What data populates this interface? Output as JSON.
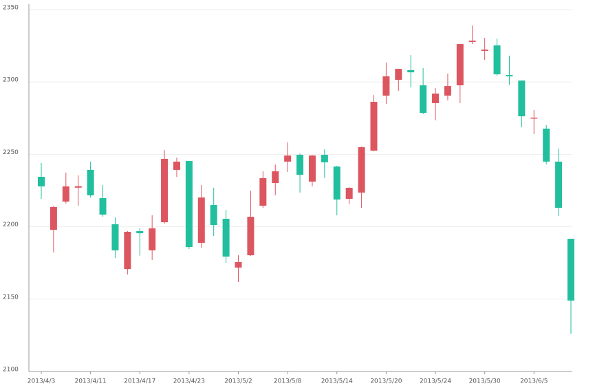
{
  "chart_data": {
    "type": "candlestick",
    "categories": [
      "2013/4/3",
      null,
      null,
      null,
      "2013/4/11",
      null,
      null,
      null,
      "2013/4/17",
      null,
      null,
      null,
      "2013/4/23",
      null,
      null,
      null,
      "2013/5/2",
      null,
      null,
      null,
      "2013/5/8",
      null,
      null,
      null,
      "2013/5/14",
      null,
      null,
      null,
      "2013/5/20",
      null,
      null,
      null,
      "2013/5/24",
      null,
      null,
      null,
      "2013/5/30",
      null,
      null,
      null,
      "2013/6/5",
      null,
      null,
      null
    ],
    "open": [
      2234.5,
      2197.9,
      2217.4,
      2227.0,
      2239.3,
      2219.8,
      2201.7,
      2170.8,
      2197.0,
      2183.7,
      2203.1,
      2239.3,
      2245.4,
      2188.9,
      2215.0,
      2205.5,
      2171.8,
      2180.3,
      2214.5,
      2230.2,
      2245.0,
      2249.7,
      2231.2,
      2249.7,
      2241.6,
      2219.3,
      2223.6,
      2252.6,
      2290.6,
      2301.5,
      2308.2,
      2297.7,
      2285.4,
      2290.6,
      2297.7,
      2327.7,
      2321.5,
      2325.3,
      2304.8,
      2301.0,
      2274.9,
      2267.8,
      2245.0,
      2191.7
    ],
    "close": [
      2227.9,
      2213.6,
      2227.9,
      2228.0,
      2221.7,
      2208.4,
      2183.7,
      2196.5,
      2195.5,
      2198.9,
      2246.9,
      2245.0,
      2186.0,
      2220.2,
      2201.2,
      2179.4,
      2175.6,
      2206.9,
      2233.6,
      2238.3,
      2249.2,
      2235.9,
      2249.2,
      2244.5,
      2218.8,
      2226.9,
      2255.0,
      2286.3,
      2303.9,
      2309.1,
      2306.7,
      2278.7,
      2292.0,
      2297.2,
      2326.2,
      2328.6,
      2322.4,
      2305.3,
      2303.9,
      2276.3,
      2275.4,
      2245.0,
      2213.1,
      2149.0
    ],
    "low": [
      2219.3,
      2182.2,
      2216.0,
      2214.5,
      2220.2,
      2207.0,
      2178.4,
      2167.0,
      2180.0,
      2177.0,
      2202.2,
      2234.5,
      2184.6,
      2185.5,
      2193.6,
      2175.1,
      2161.8,
      2179.8,
      2213.1,
      2221.7,
      2237.8,
      2223.6,
      2227.9,
      2233.6,
      2207.9,
      2215.5,
      2213.1,
      2252.1,
      2284.9,
      2293.9,
      2296.3,
      2277.8,
      2273.5,
      2287.3,
      2285.4,
      2326.2,
      2315.3,
      2304.4,
      2298.2,
      2268.7,
      2264.0,
      2243.1,
      2207.4,
      2126.1
    ],
    "high": [
      2244.0,
      2214.5,
      2237.4,
      2235.5,
      2245.0,
      2228.8,
      2206.5,
      2197.0,
      2199.0,
      2208.0,
      2253.0,
      2247.8,
      2245.4,
      2228.8,
      2227.0,
      2211.7,
      2180.3,
      2225.0,
      2238.3,
      2243.0,
      2258.3,
      2250.7,
      2249.7,
      2253.5,
      2242.1,
      2227.4,
      2255.4,
      2291.0,
      2313.4,
      2309.1,
      2318.6,
      2309.6,
      2295.8,
      2305.8,
      2326.2,
      2339.0,
      2330.5,
      2330.0,
      2318.2,
      2301.0,
      2280.6,
      2270.2,
      2254.0,
      2191.7
    ],
    "up_color": "#dc5660",
    "down_color": "#21bf9d",
    "ylim": [
      2100,
      2350
    ],
    "yticks": [
      2100,
      2150,
      2200,
      2250,
      2300,
      2350
    ],
    "grid": true
  }
}
